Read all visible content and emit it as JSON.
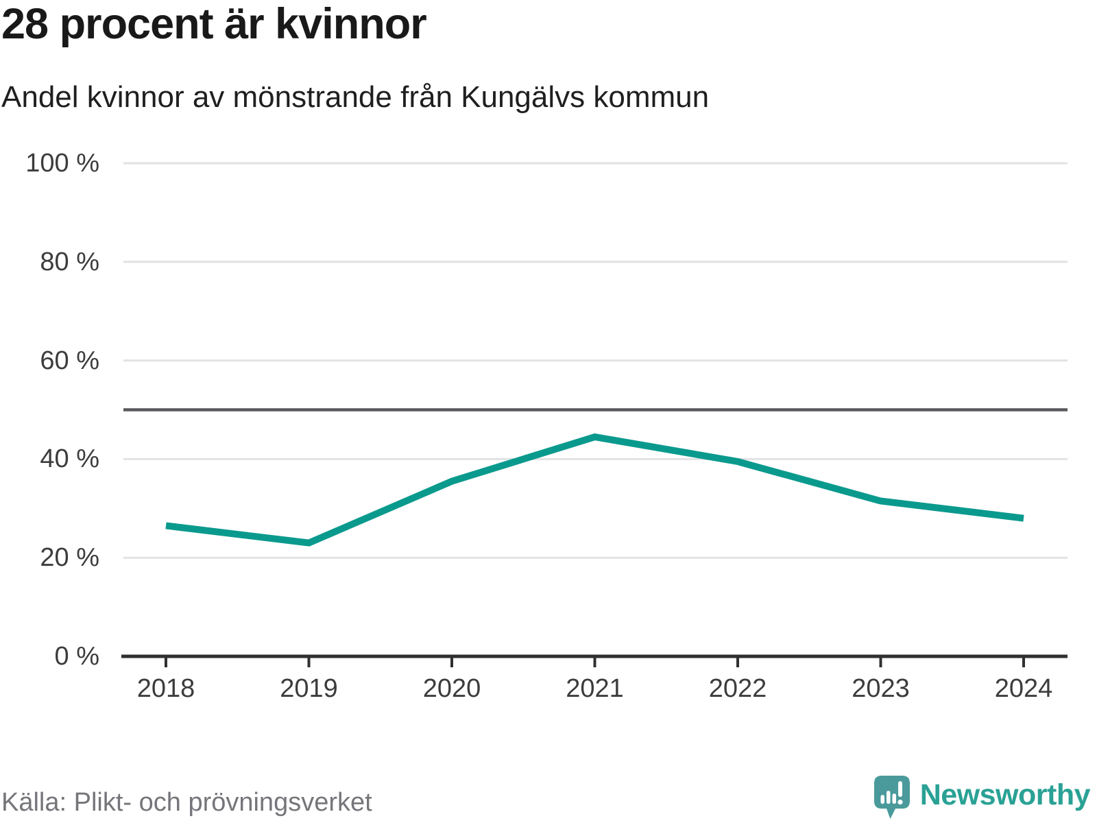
{
  "chart_data": {
    "type": "line",
    "title": "28 procent är kvinnor",
    "subtitle": "Andel kvinnor av mönstrande från Kungälvs kommun",
    "categories": [
      "2018",
      "2019",
      "2020",
      "2021",
      "2022",
      "2023",
      "2024"
    ],
    "series": [
      {
        "name": "Andel kvinnor av mönstrande",
        "values": [
          26.5,
          23,
          35.5,
          44.5,
          39.5,
          31.5,
          28
        ]
      }
    ],
    "xlabel": "",
    "ylabel": "",
    "ylim": [
      0,
      100
    ],
    "yticks": [
      {
        "value": 0,
        "label": "0 %"
      },
      {
        "value": 20,
        "label": "20 %"
      },
      {
        "value": 40,
        "label": "40 %"
      },
      {
        "value": 60,
        "label": "60 %"
      },
      {
        "value": 80,
        "label": "80 %"
      },
      {
        "value": 100,
        "label": "100 %"
      }
    ],
    "reference_line": 50,
    "grid": "horizontal",
    "legend": "none"
  },
  "footer": {
    "source": "Källa: Plikt- och prövningsverket",
    "brand": "Newsworthy"
  },
  "colors": {
    "line": "#0a9a8d",
    "grid": "#e2e2e4",
    "reference": "#5a5a5e",
    "axis": "#303030",
    "tick_text": "#3c3c3c",
    "logo_bubble": "#4a9a9b",
    "logo_mark": "#ffffff"
  }
}
